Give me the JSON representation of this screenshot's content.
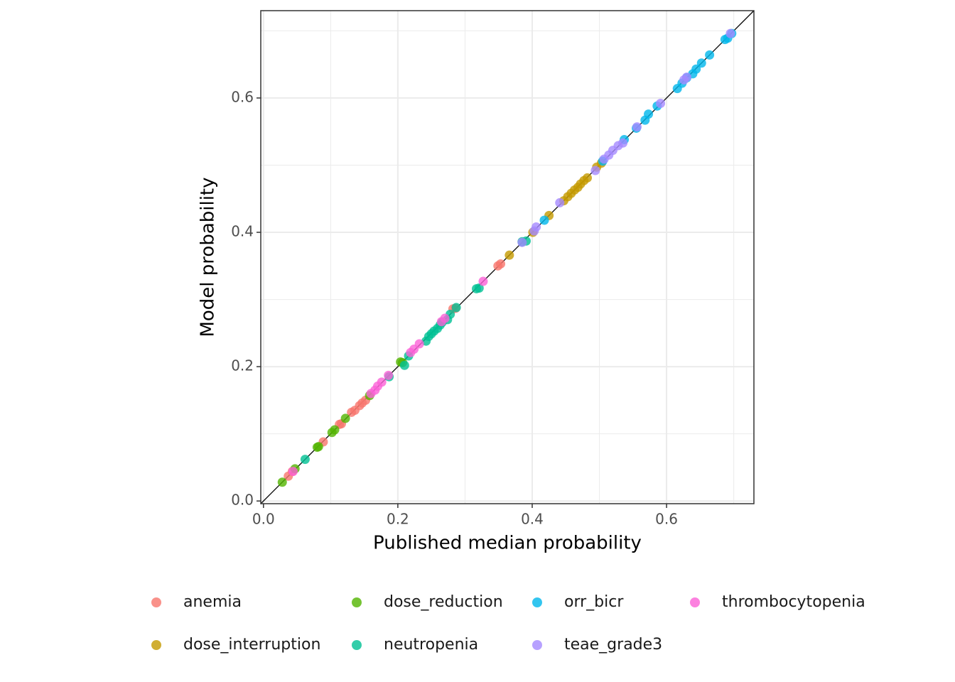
{
  "chart_data": {
    "type": "scatter",
    "x_label": "Published median probability",
    "y_label": "Model probability",
    "xlim": [
      -0.004,
      0.73
    ],
    "ylim": [
      -0.004,
      0.73
    ],
    "xticks": [
      {
        "value": 0,
        "label": "0.0"
      },
      0.2,
      0.4,
      0.6
    ],
    "yticks": [
      {
        "value": 0,
        "label": "0.0"
      },
      0.2,
      0.4,
      0.6
    ],
    "minor_gridlines": [
      0.1,
      0.3,
      0.5,
      0.7
    ],
    "grid": true,
    "legend": "bottom",
    "series": [
      {
        "name": "anemia",
        "color": "#F8766D",
        "x": [
          0.037,
          0.043,
          0.089,
          0.113,
          0.116,
          0.131,
          0.136,
          0.143,
          0.147,
          0.152,
          0.282,
          0.286,
          0.349,
          0.353
        ],
        "values": [
          0.037,
          0.044,
          0.088,
          0.114,
          0.115,
          0.132,
          0.135,
          0.142,
          0.146,
          0.15,
          0.286,
          0.287,
          0.35,
          0.353
        ]
      },
      {
        "name": "dose_interruption",
        "color": "#C49A00",
        "x": [
          0.366,
          0.401,
          0.425,
          0.447,
          0.453,
          0.458,
          0.463,
          0.468,
          0.472,
          0.477,
          0.482,
          0.496,
          0.503
        ],
        "values": [
          0.366,
          0.4,
          0.425,
          0.447,
          0.453,
          0.458,
          0.463,
          0.467,
          0.472,
          0.477,
          0.481,
          0.497,
          0.503
        ]
      },
      {
        "name": "dose_reduction",
        "color": "#53B400",
        "x": [
          0.028,
          0.047,
          0.08,
          0.082,
          0.102,
          0.106,
          0.122,
          0.158,
          0.204,
          0.207
        ],
        "values": [
          0.028,
          0.048,
          0.08,
          0.081,
          0.102,
          0.106,
          0.123,
          0.157,
          0.207,
          0.206
        ]
      },
      {
        "name": "neutropenia",
        "color": "#00C094",
        "x": [
          0.062,
          0.187,
          0.21,
          0.216,
          0.242,
          0.246,
          0.25,
          0.254,
          0.259,
          0.263,
          0.266,
          0.274,
          0.278,
          0.287,
          0.317,
          0.321,
          0.385,
          0.391
        ],
        "values": [
          0.062,
          0.185,
          0.202,
          0.216,
          0.238,
          0.245,
          0.249,
          0.253,
          0.257,
          0.262,
          0.266,
          0.27,
          0.278,
          0.288,
          0.316,
          0.317,
          0.386,
          0.387
        ]
      },
      {
        "name": "orr_bicr",
        "color": "#00B6EB",
        "x": [
          0.418,
          0.505,
          0.537,
          0.555,
          0.568,
          0.573,
          0.586,
          0.616,
          0.623,
          0.63,
          0.639,
          0.644,
          0.652,
          0.664,
          0.687,
          0.691,
          0.697
        ],
        "values": [
          0.418,
          0.506,
          0.538,
          0.555,
          0.567,
          0.576,
          0.588,
          0.614,
          0.622,
          0.63,
          0.636,
          0.643,
          0.652,
          0.664,
          0.687,
          0.689,
          0.696
        ]
      },
      {
        "name": "teae_grade3",
        "color": "#A58AFF",
        "x": [
          0.385,
          0.403,
          0.406,
          0.441,
          0.494,
          0.507,
          0.514,
          0.52,
          0.528,
          0.535,
          0.556,
          0.591,
          0.626,
          0.63,
          0.695
        ],
        "values": [
          0.385,
          0.402,
          0.408,
          0.444,
          0.492,
          0.509,
          0.515,
          0.522,
          0.529,
          0.533,
          0.557,
          0.592,
          0.627,
          0.631,
          0.696
        ]
      },
      {
        "name": "thrombocytopenia",
        "color": "#FB61D7",
        "x": [
          0.044,
          0.16,
          0.166,
          0.17,
          0.176,
          0.186,
          0.219,
          0.224,
          0.232,
          0.265,
          0.27,
          0.327
        ],
        "values": [
          0.044,
          0.16,
          0.165,
          0.171,
          0.177,
          0.187,
          0.221,
          0.226,
          0.234,
          0.267,
          0.272,
          0.327
        ]
      }
    ]
  }
}
